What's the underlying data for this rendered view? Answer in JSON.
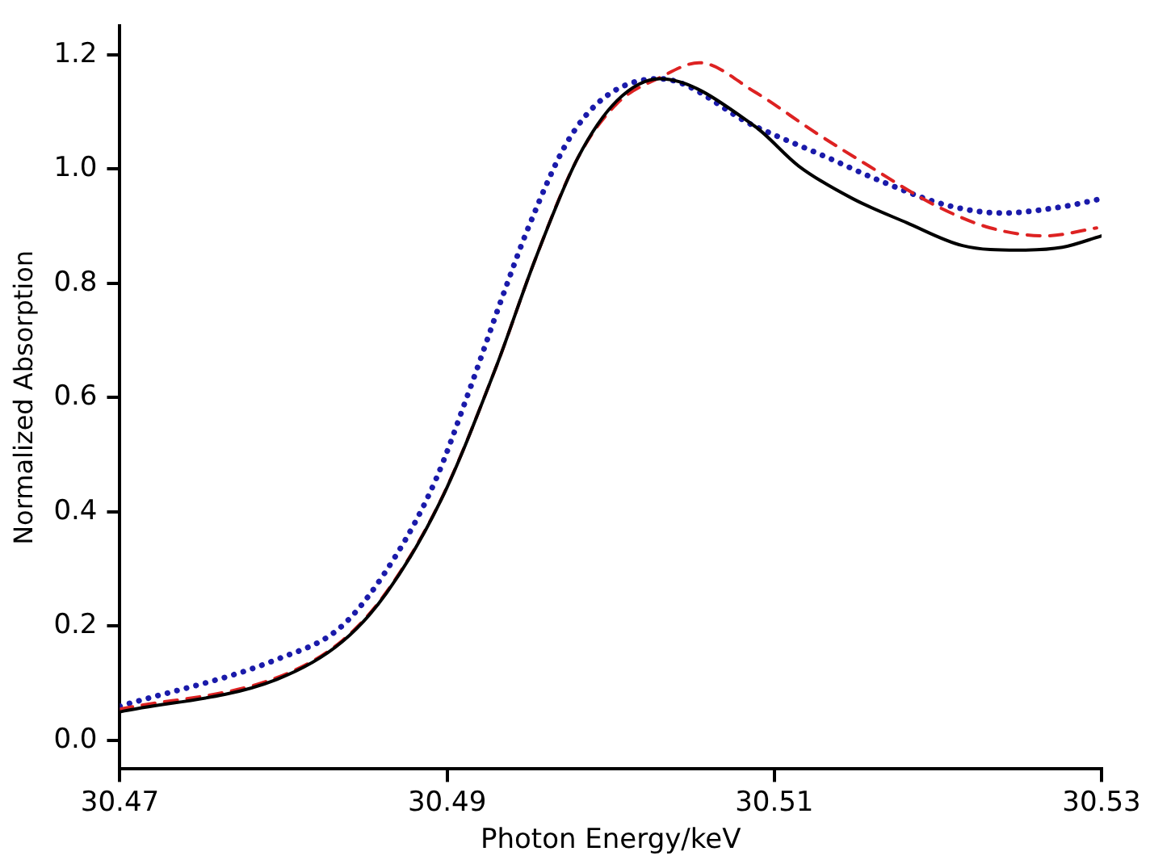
{
  "chart_data": {
    "type": "line",
    "xlabel": "Photon Energy/keV",
    "ylabel": "Normalized Absorption",
    "xlim": [
      30.47,
      30.53
    ],
    "xticks": [
      30.47,
      30.49,
      30.51,
      30.53
    ],
    "ylim": [
      -0.05,
      1.25
    ],
    "yticks": [
      {
        "value": 0,
        "label": "0.0"
      },
      {
        "value": 0.2,
        "label": "0.2"
      },
      {
        "value": 0.4,
        "label": "0.4"
      },
      {
        "value": 0.6,
        "label": "0.6"
      },
      {
        "value": 0.8,
        "label": "0.8"
      },
      {
        "value": 1,
        "label": "1.0"
      },
      {
        "value": 1.2,
        "label": "1.2"
      }
    ],
    "grid": false,
    "legend": false,
    "marker": "none",
    "series": [
      {
        "color": "#000000",
        "line_style": "solid",
        "x": [
          30.47,
          30.4796,
          30.4836,
          30.4863,
          30.4896,
          30.493,
          30.4954,
          30.498,
          30.5004,
          30.503,
          30.5088,
          30.5115,
          30.5148,
          30.5181,
          30.5215,
          30.5249,
          30.5276,
          30.53
        ],
        "values": [
          0.05,
          0.107,
          0.173,
          0.258,
          0.419,
          0.654,
          0.843,
          1.02,
          1.12,
          1.158,
          1.075,
          1.005,
          0.948,
          0.906,
          0.866,
          0.858,
          0.863,
          0.883
        ]
      },
      {
        "color": "#dd2222",
        "line_style": "dashed",
        "x": [
          30.47,
          30.4796,
          30.4836,
          30.4863,
          30.4896,
          30.493,
          30.4954,
          30.498,
          30.5004,
          30.503,
          30.5054,
          30.5088,
          30.5125,
          30.5158,
          30.5198,
          30.5232,
          30.5266,
          30.5297
        ],
        "values": [
          0.055,
          0.11,
          0.175,
          0.26,
          0.42,
          0.654,
          0.843,
          1.02,
          1.115,
          1.16,
          1.186,
          1.135,
          1.064,
          1.005,
          0.937,
          0.897,
          0.883,
          0.897
        ]
      },
      {
        "color": "#1a1aaa",
        "line_style": "dotted",
        "x": [
          30.47,
          30.4796,
          30.4836,
          30.4869,
          30.4893,
          30.4913,
          30.4934,
          30.495,
          30.4974,
          30.4997,
          30.503,
          30.5088,
          30.5131,
          30.5165,
          30.5205,
          30.5239,
          30.5276,
          30.53
        ],
        "values": [
          0.06,
          0.142,
          0.201,
          0.325,
          0.456,
          0.608,
          0.778,
          0.9,
          1.05,
          1.127,
          1.158,
          1.075,
          1.022,
          0.979,
          0.937,
          0.923,
          0.934,
          0.948
        ]
      }
    ]
  }
}
